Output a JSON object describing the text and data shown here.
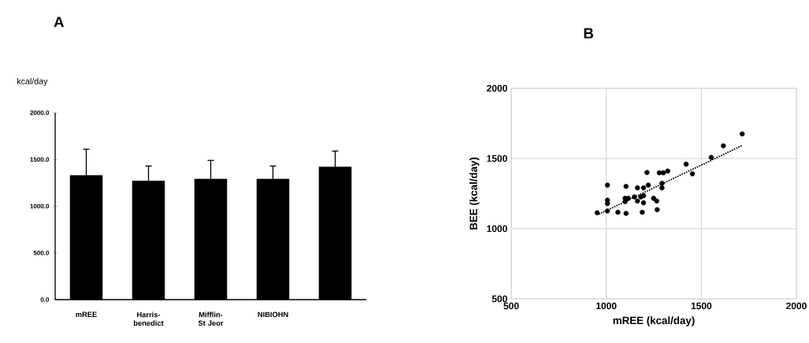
{
  "chart_data": [
    {
      "type": "bar",
      "title": "A",
      "ylabel": "kcal/day",
      "categories": [
        "mREE",
        "Harris-benedict",
        "Mifflin-St Jeor",
        "NIBIOHN",
        null
      ],
      "values": [
        1330,
        1270,
        1290,
        1290,
        1420
      ],
      "errors": [
        280,
        160,
        200,
        140,
        170
      ],
      "color": "#000000",
      "ylim": [
        0,
        2000
      ],
      "yticks": [
        {
          "value": 0,
          "label": "0.0"
        },
        {
          "value": 500,
          "label": "500.0"
        },
        {
          "value": 1000,
          "label": "1000.0"
        },
        {
          "value": 1500,
          "label": "1500.0"
        },
        {
          "value": 2000,
          "label": "2000.0"
        }
      ],
      "grid": false
    },
    {
      "type": "scatter",
      "title": "B",
      "xlabel": "mREE (kcal/day)",
      "ylabel": "BEE (kcal/day)",
      "xlim": [
        500,
        2000
      ],
      "ylim": [
        500,
        2000
      ],
      "xticks": [
        500,
        1000,
        1500,
        2000
      ],
      "yticks": [
        500,
        1000,
        1500,
        2000
      ],
      "grid": true,
      "series": [
        {
          "color": "#000000",
          "marker": "circle",
          "x": [
            952,
            1006,
            1006,
            1006,
            1006,
            1061,
            1104,
            1104,
            1099,
            1099,
            1116,
            1148,
            1164,
            1164,
            1182,
            1196,
            1196,
            1196,
            1189,
            1221,
            1214,
            1249,
            1265,
            1268,
            1279,
            1300,
            1323,
            1293,
            1293,
            1420,
            1453,
            1552,
            1616,
            1715
          ],
          "values": [
            1113,
            1310,
            1203,
            1179,
            1126,
            1117,
            1109,
            1301,
            1216,
            1192,
            1216,
            1226,
            1291,
            1197,
            1226,
            1235,
            1184,
            1291,
            1117,
            1310,
            1400,
            1216,
            1197,
            1135,
            1398,
            1398,
            1410,
            1323,
            1291,
            1459,
            1391,
            1508,
            1590,
            1675
          ]
        },
        {
          "type": "line",
          "color": "#000000",
          "line_style": "dotted",
          "marker": "none",
          "x": [
            961,
            1714
          ],
          "values": [
            1103,
            1592
          ]
        }
      ]
    }
  ]
}
